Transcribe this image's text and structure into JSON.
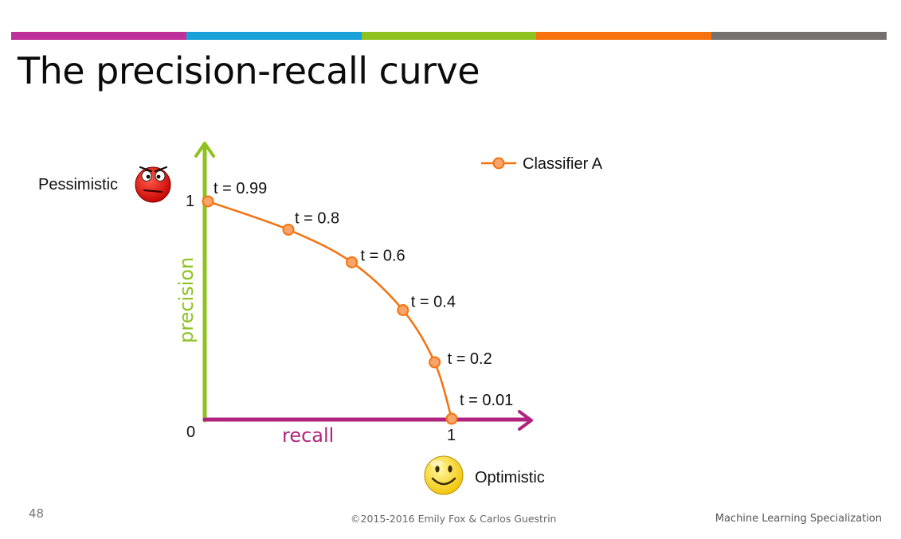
{
  "slide": {
    "title": "The precision-recall curve",
    "number": "48",
    "copyright": "©2015-2016 Emily Fox & Carlos Guestrin",
    "course": "Machine Learning Specialization",
    "stripe_colors": [
      "#c0309a",
      "#1aa0d8",
      "#8dc21f",
      "#f5720f",
      "#76706e"
    ]
  },
  "chart_data": {
    "type": "line",
    "xlabel": "recall",
    "ylabel": "precision",
    "xlim": [
      0,
      1
    ],
    "ylim": [
      0,
      1
    ],
    "x_ticks": [
      "0",
      "1"
    ],
    "y_ticks": [
      "0",
      "1"
    ],
    "grid": false,
    "legend": "top-right",
    "series": [
      {
        "name": "Classifier A",
        "color": "#f5720f",
        "points": [
          {
            "x": 0.0,
            "y": 1.0,
            "label": "t = 0.99"
          },
          {
            "x": 0.33,
            "y": 0.87,
            "label": "t = 0.8"
          },
          {
            "x": 0.59,
            "y": 0.72,
            "label": "t = 0.6"
          },
          {
            "x": 0.8,
            "y": 0.5,
            "label": "t = 0.4"
          },
          {
            "x": 0.93,
            "y": 0.26,
            "label": "t = 0.2"
          },
          {
            "x": 1.0,
            "y": 0.0,
            "label": "t = 0.01"
          }
        ]
      }
    ],
    "annotations": {
      "pessimistic": "Pessimistic",
      "optimistic": "Optimistic"
    },
    "icons": {
      "pessimistic": "angry-face-icon",
      "optimistic": "smiley-face-icon"
    },
    "axis_colors": {
      "x": "#b0247e",
      "y": "#8dc21f"
    }
  }
}
